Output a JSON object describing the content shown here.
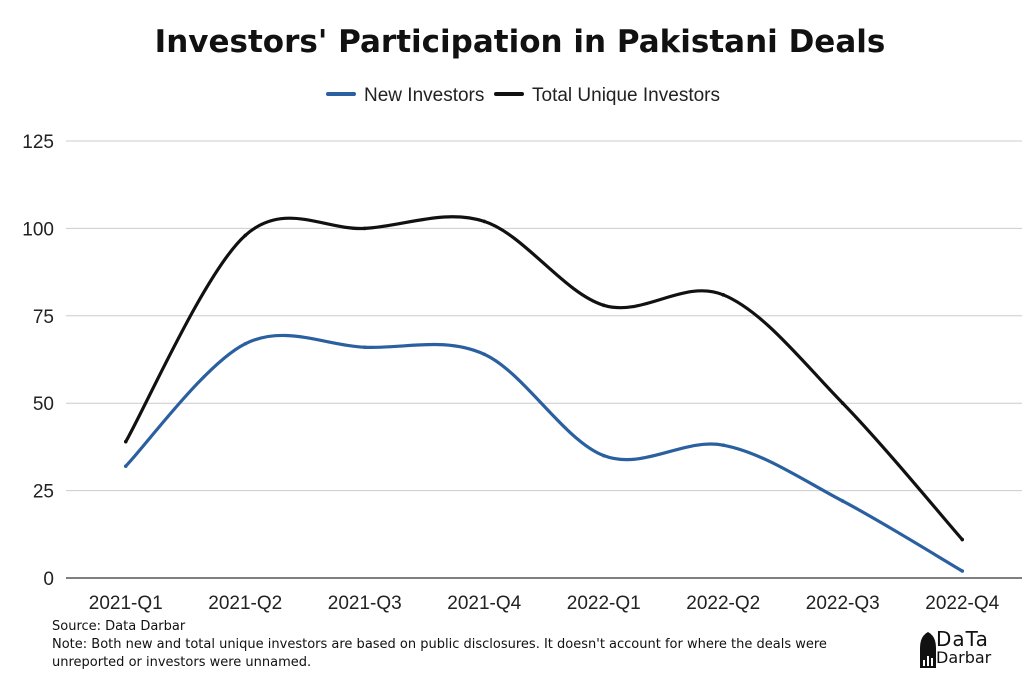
{
  "chart_data": {
    "type": "line",
    "title": "Investors' Participation in Pakistani Deals",
    "categories": [
      "2021-Q1",
      "2021-Q2",
      "2021-Q3",
      "2021-Q4",
      "2022-Q1",
      "2022-Q2",
      "2022-Q3",
      "2022-Q4"
    ],
    "series": [
      {
        "name": "New Investors",
        "color": "#2a5fa0",
        "values": [
          32,
          67,
          66,
          64,
          35,
          38,
          22,
          2
        ]
      },
      {
        "name": "Total Unique Investors",
        "color": "#111111",
        "values": [
          39,
          98,
          100,
          102,
          78,
          81,
          50,
          11
        ]
      }
    ],
    "yticks": [
      "0",
      "25",
      "50",
      "75",
      "100",
      "125"
    ],
    "ylim": [
      0,
      125
    ],
    "grid": true,
    "legend": "top-center",
    "smooth": true
  },
  "notes": {
    "source": "Source: Data Darbar",
    "note_line1": "Note: Both new and total unique investors are based on public disclosures. It doesn't account for where the deals were",
    "note_line2": "unreported or investors were unnamed."
  },
  "brand": {
    "name_top": "DaTa",
    "name_bottom": "Darbar",
    "icon": "dome-logo-icon"
  }
}
